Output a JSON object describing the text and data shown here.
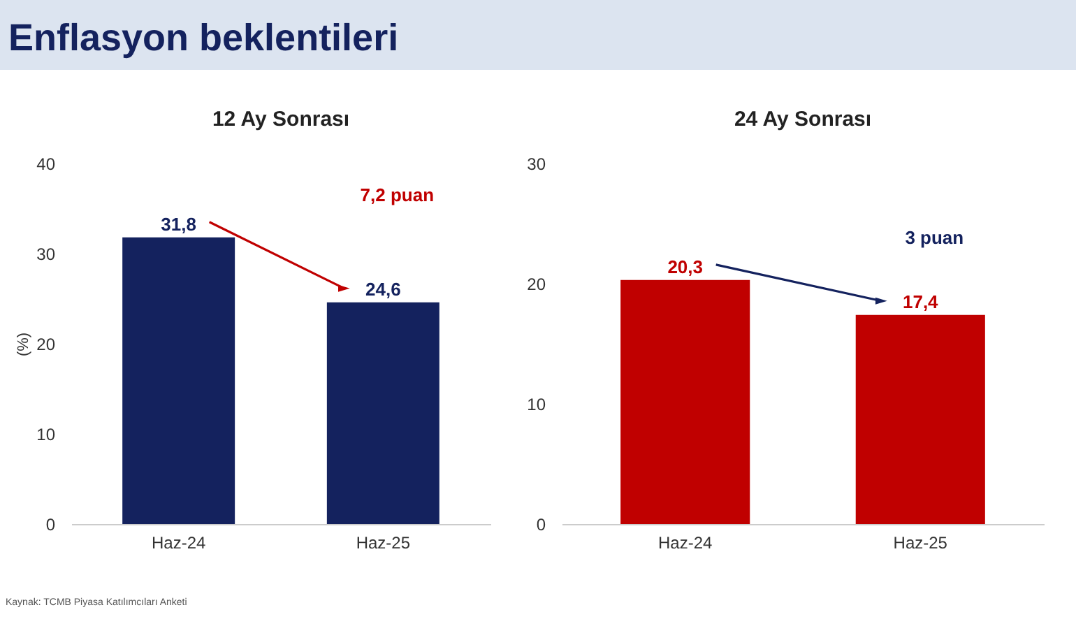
{
  "chart_data": [
    {
      "type": "bar",
      "title": "12 Ay Sonrası",
      "ylabel": "(%)",
      "categories": [
        "Haz-24",
        "Haz-25"
      ],
      "values": [
        31.8,
        24.6
      ],
      "value_labels": [
        "31,8",
        "24,6"
      ],
      "color": "#14225e",
      "ylim": [
        0,
        40
      ],
      "yticks": [
        0,
        10,
        20,
        30,
        40
      ],
      "annotations": [
        "Enflasyon beklentileri",
        "7,2 puan",
        "Kaynak: TCMB Piyasa Katılımcıları Anketi"
      ]
    },
    {
      "type": "bar",
      "title": "24 Ay Sonrası",
      "categories": [
        "Haz-24",
        "Haz-25"
      ],
      "values": [
        20.3,
        17.4
      ],
      "value_labels": [
        "20,3",
        "17,4"
      ],
      "color": "#c00000",
      "ylim": [
        0,
        30
      ],
      "yticks": [
        0,
        10,
        20,
        30
      ],
      "annotations": [
        "3 puan"
      ]
    }
  ]
}
